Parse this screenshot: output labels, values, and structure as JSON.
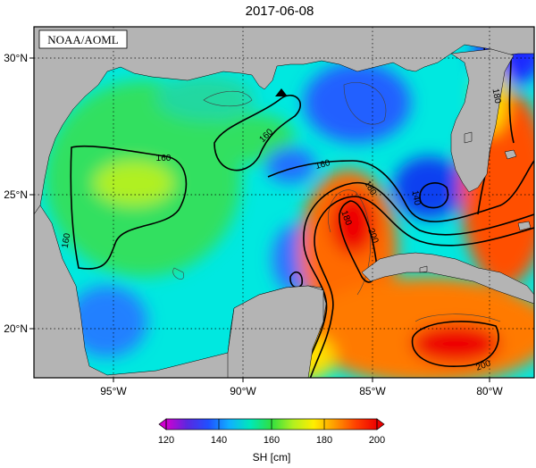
{
  "title": "2017-06-08",
  "credit": "NOAA/AOML",
  "lat_ticks": [
    {
      "value": 30,
      "label": "30°N"
    },
    {
      "value": 25,
      "label": "25°N"
    },
    {
      "value": 20,
      "label": "20°N"
    }
  ],
  "lon_ticks": [
    {
      "value": -95,
      "label": "95°W"
    },
    {
      "value": -90,
      "label": "90°W"
    },
    {
      "value": -85,
      "label": "85°W"
    },
    {
      "value": -80,
      "label": "80°W"
    }
  ],
  "extent": {
    "lon_min": -98.5,
    "lon_max": -78,
    "lat_min": 18,
    "lat_max": 31
  },
  "colorbar": {
    "ticks": [
      "120",
      "140",
      "160",
      "180",
      "200"
    ],
    "unit_label": "SH [cm]",
    "stops": [
      "#d000d0",
      "#5a28e0",
      "#2050ff",
      "#10b0ff",
      "#00e8b8",
      "#30e040",
      "#b0f020",
      "#ffee00",
      "#ff9a00",
      "#ff4000",
      "#ee0000"
    ]
  },
  "contour_labels": [
    "160",
    "160",
    "160",
    "160",
    "180",
    "180",
    "180",
    "140",
    "200",
    "200"
  ],
  "colors": {
    "land": "#b4b4b4",
    "ocean_base": "#00e8e0",
    "frame": "#000000"
  },
  "marker": "black-triangle-marker"
}
